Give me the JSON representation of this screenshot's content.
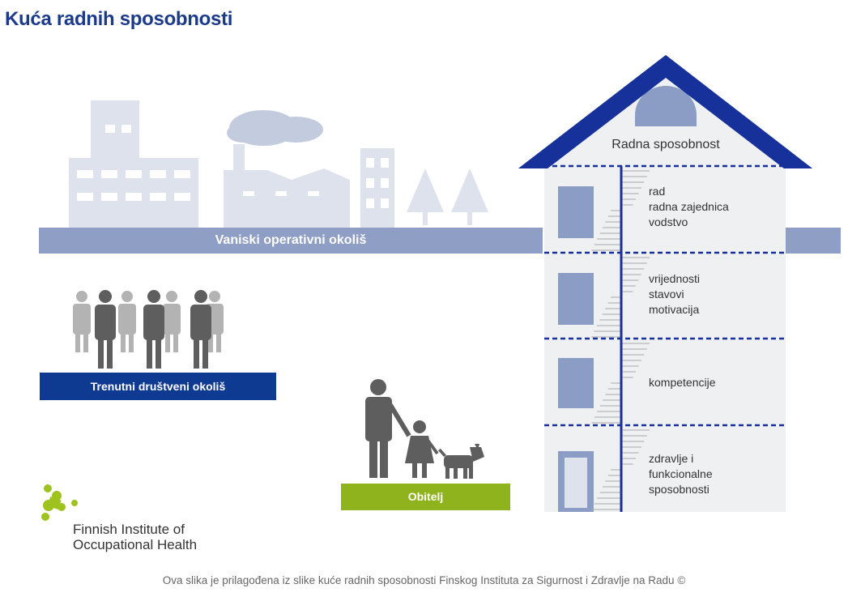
{
  "title": "Kuća radnih sposobnosti",
  "roof_label": "Radna sposobnost",
  "environment_label": "Vaniski operativni okoliš",
  "social_label": "Trenutni društveni okoliš",
  "family_label": "Obitelj",
  "floors": [
    {
      "lines": [
        "rad",
        "radna zajednica",
        "vodstvo"
      ]
    },
    {
      "lines": [
        "vrijednosti",
        "stavovi",
        "motivacija"
      ]
    },
    {
      "lines": [
        "kompetencije"
      ]
    },
    {
      "lines": [
        "zdravlje i",
        "funkcionalne",
        "sposobnosti"
      ]
    }
  ],
  "logo": {
    "line1": "Finnish Institute of",
    "line2": "Occupational Health"
  },
  "footer": "Ova slika je prilagođena iz slike kuće radnih sposobnosti  Finskog Instituta za Sigurnost i Zdravlje na Radu ©",
  "colors": {
    "title": "#1b3a8a",
    "roof": "#17319a",
    "skyline": "#dde2ec",
    "band": "#8e9ec4",
    "social_bar": "#0f3a92",
    "family_bar": "#8fb31d",
    "house": "#eff0f2",
    "window": "#8c9dc5",
    "logo": "#9fc31e"
  },
  "icons": [
    "people-group-icon",
    "family-icon",
    "dog-icon",
    "cloud-icon",
    "tree-icon",
    "finnish-institute-logo-icon"
  ]
}
